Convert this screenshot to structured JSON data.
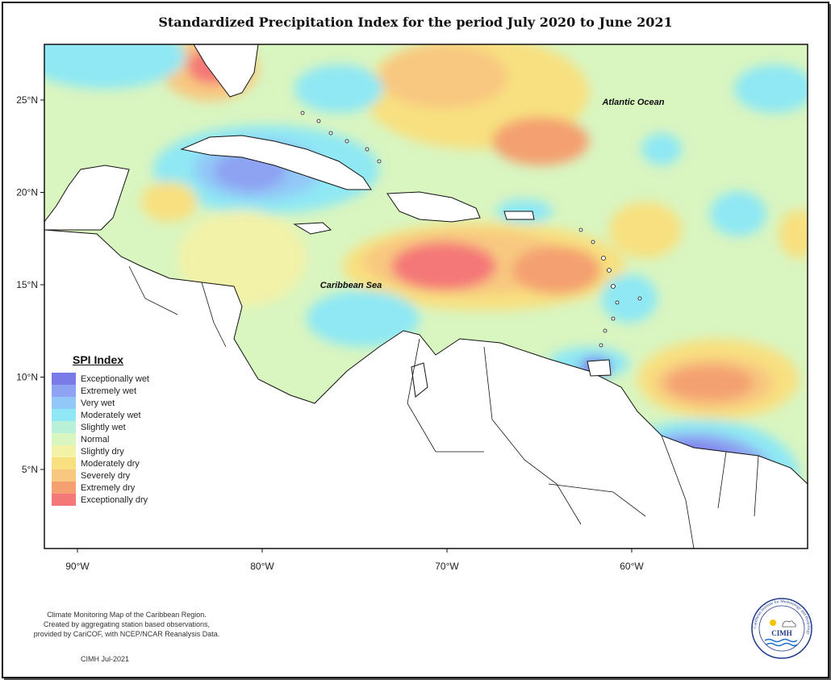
{
  "title": "Standardized Precipitation Index for the period July 2020 to June 2021",
  "map": {
    "lat_ticks": [
      {
        "lat": 25,
        "label": "25°N"
      },
      {
        "lat": 20,
        "label": "20°N"
      },
      {
        "lat": 15,
        "label": "15°N"
      },
      {
        "lat": 10,
        "label": "10°N"
      },
      {
        "lat": 5,
        "label": "5°N"
      }
    ],
    "lon_ticks": [
      {
        "lon": -90,
        "label": "90°W"
      },
      {
        "lon": -80,
        "label": "80°W"
      },
      {
        "lon": -70,
        "label": "70°W"
      },
      {
        "lon": -60,
        "label": "60°W"
      }
    ],
    "places": {
      "atlantic": "Atlantic Ocean",
      "caribbean": "Caribbean Sea"
    }
  },
  "legend": {
    "title": "SPI Index",
    "items": [
      {
        "label": "Exceptionally wet",
        "color": "#7b7be8"
      },
      {
        "label": "Extremely wet",
        "color": "#8ea3f2"
      },
      {
        "label": "Very wet",
        "color": "#92c8f8"
      },
      {
        "label": "Moderately wet",
        "color": "#8fe8f4"
      },
      {
        "label": "Slightly wet",
        "color": "#b8f0d8"
      },
      {
        "label": "Normal",
        "color": "#d9f5c0"
      },
      {
        "label": "Slightly dry",
        "color": "#f2f2a8"
      },
      {
        "label": "Moderately dry",
        "color": "#f8e080"
      },
      {
        "label": "Severely dry",
        "color": "#f8c880"
      },
      {
        "label": "Extremely dry",
        "color": "#f4a070"
      },
      {
        "label": "Exceptionally dry",
        "color": "#f47878"
      }
    ]
  },
  "footer": {
    "line1": "Climate Monitoring Map of the Caribbean Region.",
    "line2": "Created by aggregating station based observations,",
    "line3": "provided by CariCOF, with NCEP/NCAR Reanalysis Data.",
    "credit": "CIMH Jul-2021"
  },
  "logo": {
    "text": "CIMH",
    "ring_text": "Caribbean Institute for Meteorology and Hydrology"
  }
}
